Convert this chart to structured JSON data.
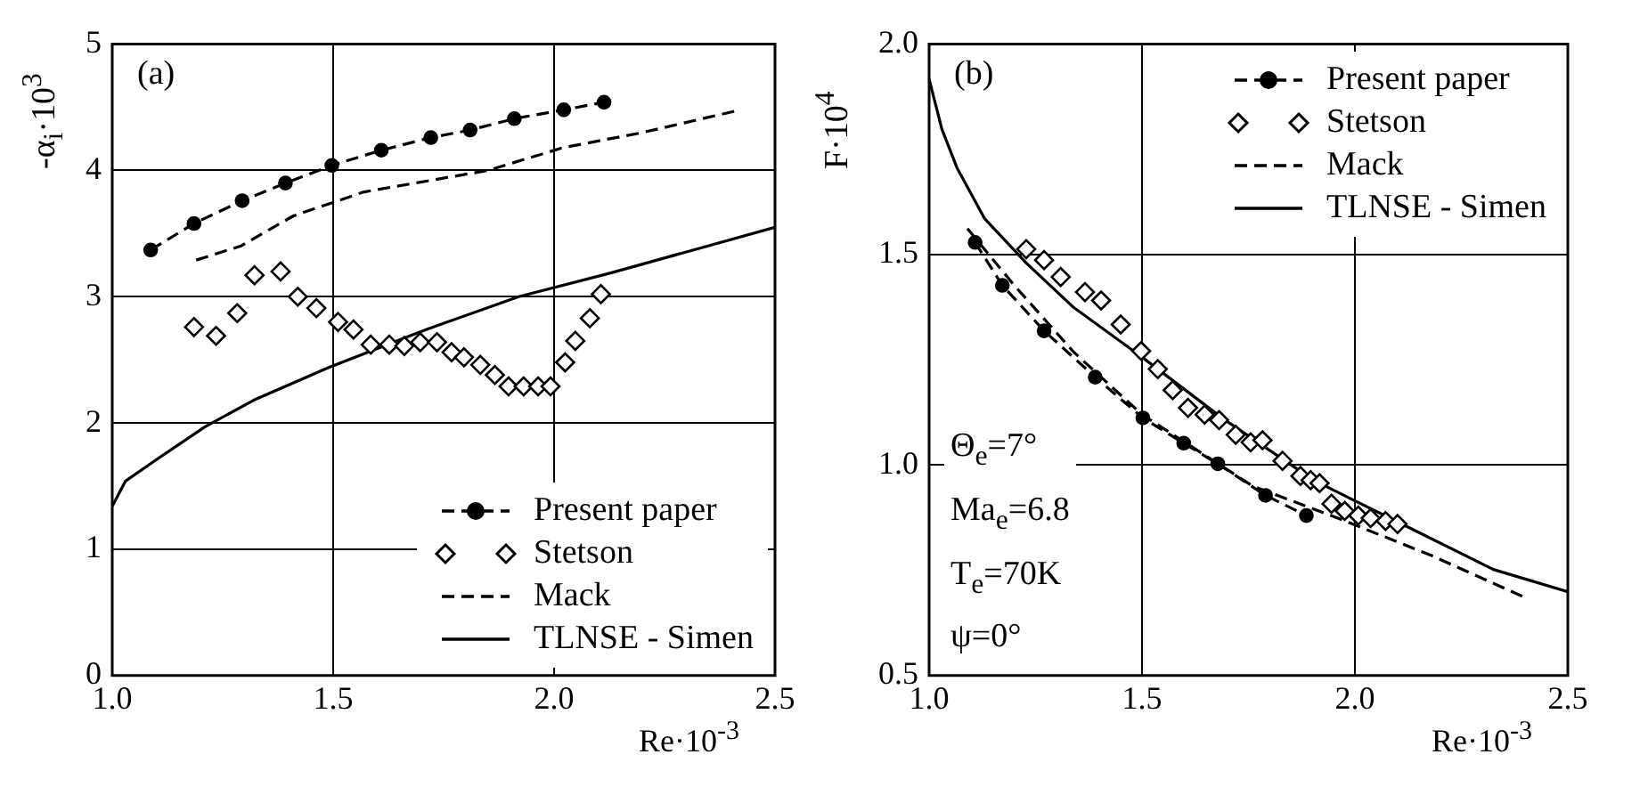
{
  "chart_data": [
    {
      "type": "line",
      "ylabel": "-α$_{i}$·10$^{3}$",
      "xlabel": "Re·10$^{-3}$",
      "annotations": [
        "(a)"
      ],
      "xlim": [
        1.0,
        2.5
      ],
      "xticks": [
        {
          "value": 1.0,
          "label": "1.0"
        },
        {
          "value": 1.5,
          "label": "1.5"
        },
        {
          "value": 2.0,
          "label": "2.0"
        },
        {
          "value": 2.5,
          "label": "2.5"
        }
      ],
      "ylim": [
        0,
        5
      ],
      "yticks": [
        0,
        1,
        2,
        3,
        4,
        5
      ],
      "grid": true,
      "legend": "bottom right",
      "series": [
        {
          "name": "Present paper",
          "type": "line",
          "color": "#000000",
          "marker": "circle",
          "line_style": "dashed",
          "x": [
            1.087,
            1.185,
            1.294,
            1.392,
            1.497,
            1.609,
            1.721,
            1.81,
            1.91,
            2.022,
            2.113
          ],
          "values": [
            3.37,
            3.58,
            3.76,
            3.9,
            4.04,
            4.16,
            4.26,
            4.32,
            4.41,
            4.48,
            4.54
          ]
        },
        {
          "name": "Stetson",
          "type": "scatter",
          "color": "#000000",
          "marker": "diamond",
          "x": [
            1.185,
            1.235,
            1.283,
            1.322,
            1.381,
            1.42,
            1.462,
            1.511,
            1.546,
            1.585,
            1.627,
            1.661,
            1.697,
            1.735,
            1.768,
            1.796,
            1.833,
            1.866,
            1.897,
            1.931,
            1.964,
            1.992,
            2.025,
            2.048,
            2.081,
            2.106
          ],
          "values": [
            2.76,
            2.69,
            2.87,
            3.17,
            3.2,
            3.0,
            2.91,
            2.8,
            2.74,
            2.62,
            2.62,
            2.61,
            2.64,
            2.64,
            2.56,
            2.52,
            2.46,
            2.38,
            2.29,
            2.29,
            2.29,
            2.29,
            2.48,
            2.65,
            2.83,
            3.02
          ]
        },
        {
          "name": "Mack",
          "type": "line",
          "color": "#000000",
          "marker": "none",
          "line_style": "dashed",
          "x": [
            1.19,
            1.29,
            1.41,
            1.57,
            1.85,
            2.02,
            2.2,
            2.41
          ],
          "values": [
            3.29,
            3.4,
            3.64,
            3.83,
            4.0,
            4.18,
            4.3,
            4.47
          ]
        },
        {
          "name": "TLNSE - Simen",
          "type": "line",
          "color": "#000000",
          "marker": "none",
          "line_style": "solid",
          "x": [
            1.0,
            1.03,
            1.1,
            1.21,
            1.32,
            1.49,
            1.71,
            1.92,
            2.13,
            2.5
          ],
          "values": [
            1.34,
            1.54,
            1.71,
            1.97,
            2.18,
            2.44,
            2.74,
            3.0,
            3.19,
            3.55
          ]
        }
      ]
    },
    {
      "type": "line",
      "ylabel": "F·10$^{4}$",
      "xlabel": "Re·10$^{-3}$",
      "annotations": [
        "(b)",
        "Θ$_{e}$=7°",
        "Ma$_{e}$=6.8",
        "T$_{e}$=70K",
        "ψ=0°"
      ],
      "xlim": [
        1.0,
        2.5
      ],
      "xticks": [
        {
          "value": 1.0,
          "label": "1.0"
        },
        {
          "value": 1.5,
          "label": "1.5"
        },
        {
          "value": 2.0,
          "label": "2.0"
        },
        {
          "value": 2.5,
          "label": "2.5"
        }
      ],
      "ylim": [
        0.5,
        2.0
      ],
      "yticks": [
        {
          "value": 0.5,
          "label": "0.5"
        },
        {
          "value": 1.0,
          "label": "1.0"
        },
        {
          "value": 1.5,
          "label": "1.5"
        },
        {
          "value": 2.0,
          "label": "2.0"
        }
      ],
      "grid": true,
      "legend": "top right",
      "series": [
        {
          "name": "Present paper",
          "type": "line",
          "color": "#000000",
          "marker": "circle",
          "line_style": "dashed",
          "x": [
            1.108,
            1.172,
            1.27,
            1.39,
            1.502,
            1.598,
            1.678,
            1.79,
            1.886
          ],
          "values": [
            1.529,
            1.427,
            1.319,
            1.209,
            1.112,
            1.052,
            1.003,
            0.928,
            0.88
          ]
        },
        {
          "name": "Stetson",
          "type": "scatter",
          "color": "#000000",
          "marker": "diamond",
          "x": [
            1.228,
            1.27,
            1.309,
            1.366,
            1.404,
            1.45,
            1.498,
            1.537,
            1.572,
            1.608,
            1.647,
            1.681,
            1.72,
            1.755,
            1.783,
            1.83,
            1.872,
            1.896,
            1.917,
            1.945,
            1.976,
            2.008,
            2.037,
            2.072,
            2.1
          ],
          "values": [
            1.513,
            1.487,
            1.447,
            1.411,
            1.391,
            1.334,
            1.271,
            1.228,
            1.178,
            1.136,
            1.12,
            1.107,
            1.072,
            1.054,
            1.059,
            1.01,
            0.974,
            0.964,
            0.957,
            0.908,
            0.891,
            0.88,
            0.874,
            0.867,
            0.86
          ]
        },
        {
          "name": "Mack",
          "type": "line",
          "color": "#000000",
          "marker": "none",
          "line_style": "dashed",
          "x": [
            1.09,
            1.2,
            1.34,
            1.5,
            1.76,
            1.97,
            2.18,
            2.4
          ],
          "values": [
            1.562,
            1.427,
            1.268,
            1.12,
            0.95,
            0.87,
            0.785,
            0.685
          ]
        },
        {
          "name": "TLNSE - Simen",
          "type": "line",
          "color": "#000000",
          "marker": "none",
          "line_style": "solid",
          "x": [
            1.0,
            1.03,
            1.066,
            1.13,
            1.228,
            1.34,
            1.502,
            1.692,
            1.903,
            2.114,
            2.325,
            2.5
          ],
          "values": [
            1.917,
            1.798,
            1.705,
            1.586,
            1.48,
            1.374,
            1.255,
            1.109,
            0.964,
            0.858,
            0.752,
            0.699
          ]
        }
      ]
    }
  ]
}
